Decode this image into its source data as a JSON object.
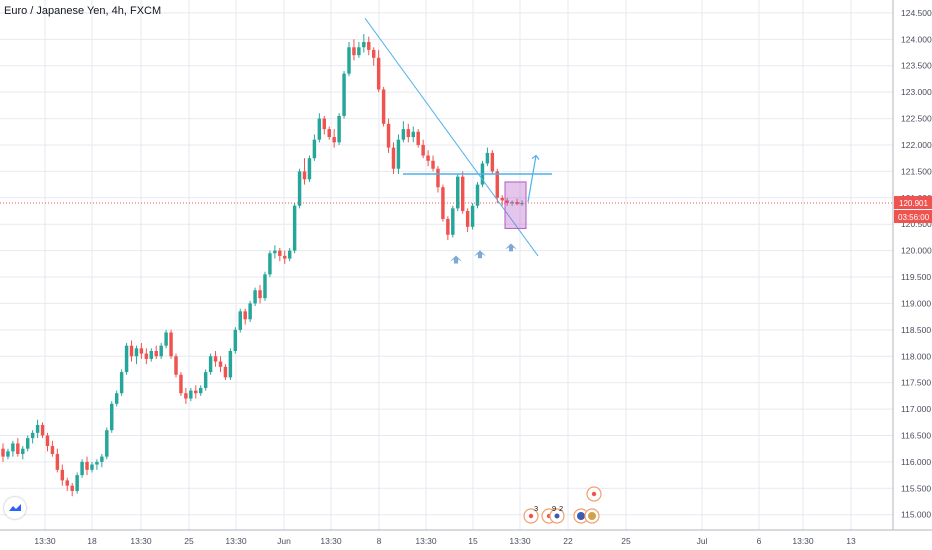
{
  "header": {
    "title": "Euro / Japanese Yen, 4h, FXCM"
  },
  "colors": {
    "up": "#26a69a",
    "down": "#ef5350",
    "grid": "#e6e9ef",
    "drawing": "#4fb0ea",
    "price_line": "#ef5350",
    "box": "#b25ac7",
    "event": "#f3a06d"
  },
  "price_badge": {
    "price": "120.901",
    "countdown": "03:56:00"
  },
  "events": {
    "numbers": [
      "3",
      "9",
      "2"
    ]
  },
  "chart_data": {
    "type": "candlestick",
    "title": "Euro / Japanese Yen, 4h, FXCM",
    "ylim": [
      114.9,
      124.65
    ],
    "y_ticks": [
      "124.500",
      "124.000",
      "123.500",
      "123.000",
      "122.500",
      "122.000",
      "121.500",
      "121.000",
      "120.500",
      "120.000",
      "119.500",
      "119.000",
      "118.500",
      "118.000",
      "117.500",
      "117.000",
      "116.500",
      "116.000",
      "115.500",
      "115.000"
    ],
    "x_ticks": [
      "13:30",
      "18",
      "13:30",
      "25",
      "13:30",
      "Jun",
      "13:30",
      "8",
      "13:30",
      "15",
      "13:30",
      "22",
      "25",
      "Jul",
      "6",
      "13:30",
      "13"
    ],
    "last_price": 120.901,
    "candles": [
      [
        116.25,
        116.35,
        116.0,
        116.1
      ],
      [
        116.1,
        116.25,
        116.05,
        116.2
      ],
      [
        116.2,
        116.4,
        116.1,
        116.35
      ],
      [
        116.35,
        116.45,
        116.1,
        116.15
      ],
      [
        116.15,
        116.3,
        116.05,
        116.25
      ],
      [
        116.25,
        116.5,
        116.2,
        116.45
      ],
      [
        116.45,
        116.6,
        116.35,
        116.55
      ],
      [
        116.55,
        116.8,
        116.45,
        116.7
      ],
      [
        116.7,
        116.75,
        116.45,
        116.5
      ],
      [
        116.5,
        116.55,
        116.2,
        116.3
      ],
      [
        116.3,
        116.4,
        116.1,
        116.15
      ],
      [
        116.15,
        116.25,
        115.8,
        115.85
      ],
      [
        115.85,
        115.95,
        115.55,
        115.65
      ],
      [
        115.65,
        115.7,
        115.45,
        115.55
      ],
      [
        115.55,
        115.6,
        115.35,
        115.45
      ],
      [
        115.45,
        115.8,
        115.4,
        115.75
      ],
      [
        115.75,
        116.05,
        115.7,
        116.0
      ],
      [
        116.0,
        116.1,
        115.75,
        115.85
      ],
      [
        115.85,
        116.0,
        115.8,
        115.95
      ],
      [
        115.95,
        116.05,
        115.85,
        116.0
      ],
      [
        116.0,
        116.15,
        115.9,
        116.1
      ],
      [
        116.1,
        116.65,
        116.05,
        116.6
      ],
      [
        116.6,
        117.15,
        116.55,
        117.1
      ],
      [
        117.1,
        117.35,
        117.05,
        117.3
      ],
      [
        117.3,
        117.75,
        117.25,
        117.7
      ],
      [
        117.7,
        118.25,
        117.65,
        118.2
      ],
      [
        118.2,
        118.3,
        117.9,
        118.0
      ],
      [
        118.0,
        118.2,
        117.85,
        118.15
      ],
      [
        118.15,
        118.25,
        117.95,
        118.05
      ],
      [
        118.05,
        118.15,
        117.85,
        117.95
      ],
      [
        117.95,
        118.15,
        117.9,
        118.1
      ],
      [
        118.1,
        118.2,
        117.95,
        118.0
      ],
      [
        118.0,
        118.25,
        117.95,
        118.2
      ],
      [
        118.2,
        118.5,
        118.15,
        118.45
      ],
      [
        118.45,
        118.5,
        117.95,
        118.0
      ],
      [
        118.0,
        118.05,
        117.6,
        117.65
      ],
      [
        117.65,
        117.7,
        117.25,
        117.3
      ],
      [
        117.3,
        117.4,
        117.1,
        117.2
      ],
      [
        117.2,
        117.4,
        117.15,
        117.35
      ],
      [
        117.35,
        117.45,
        117.2,
        117.3
      ],
      [
        117.3,
        117.45,
        117.25,
        117.4
      ],
      [
        117.4,
        117.75,
        117.35,
        117.7
      ],
      [
        117.7,
        118.05,
        117.65,
        118.0
      ],
      [
        118.0,
        118.1,
        117.8,
        117.9
      ],
      [
        117.9,
        118.0,
        117.7,
        117.8
      ],
      [
        117.8,
        117.85,
        117.55,
        117.6
      ],
      [
        117.6,
        118.15,
        117.55,
        118.1
      ],
      [
        118.1,
        118.55,
        118.05,
        118.5
      ],
      [
        118.5,
        118.9,
        118.45,
        118.85
      ],
      [
        118.85,
        118.9,
        118.6,
        118.7
      ],
      [
        118.7,
        119.05,
        118.65,
        119.0
      ],
      [
        119.0,
        119.3,
        118.95,
        119.25
      ],
      [
        119.25,
        119.35,
        119.0,
        119.1
      ],
      [
        119.1,
        119.6,
        119.05,
        119.55
      ],
      [
        119.55,
        120.0,
        119.5,
        119.95
      ],
      [
        119.95,
        120.1,
        119.85,
        120.0
      ],
      [
        120.0,
        120.05,
        119.8,
        119.9
      ],
      [
        119.9,
        120.0,
        119.75,
        119.85
      ],
      [
        119.85,
        120.05,
        119.8,
        120.0
      ],
      [
        120.0,
        120.9,
        119.95,
        120.85
      ],
      [
        120.85,
        121.55,
        120.8,
        121.5
      ],
      [
        121.5,
        121.75,
        121.25,
        121.35
      ],
      [
        121.35,
        121.8,
        121.3,
        121.75
      ],
      [
        121.75,
        122.2,
        121.7,
        122.1
      ],
      [
        122.1,
        122.6,
        122.05,
        122.5
      ],
      [
        122.5,
        122.55,
        122.2,
        122.3
      ],
      [
        122.3,
        122.35,
        122.1,
        122.15
      ],
      [
        122.15,
        122.3,
        121.95,
        122.05
      ],
      [
        122.05,
        122.6,
        122.0,
        122.55
      ],
      [
        122.55,
        123.4,
        122.5,
        123.35
      ],
      [
        123.35,
        123.95,
        123.3,
        123.85
      ],
      [
        123.85,
        124.0,
        123.6,
        123.7
      ],
      [
        123.7,
        123.95,
        123.65,
        123.85
      ],
      [
        123.85,
        124.1,
        123.75,
        123.95
      ],
      [
        123.95,
        124.05,
        123.7,
        123.8
      ],
      [
        123.8,
        123.85,
        123.5,
        123.65
      ],
      [
        123.65,
        123.8,
        123.0,
        123.05
      ],
      [
        123.05,
        123.1,
        122.35,
        122.4
      ],
      [
        122.4,
        122.5,
        121.85,
        121.95
      ],
      [
        121.95,
        122.05,
        121.45,
        121.55
      ],
      [
        121.55,
        122.2,
        121.45,
        122.1
      ],
      [
        122.1,
        122.45,
        122.05,
        122.3
      ],
      [
        122.3,
        122.4,
        122.05,
        122.15
      ],
      [
        122.15,
        122.35,
        122.05,
        122.25
      ],
      [
        122.25,
        122.3,
        121.95,
        122.0
      ],
      [
        122.0,
        122.1,
        121.75,
        121.8
      ],
      [
        121.8,
        121.9,
        121.6,
        121.7
      ],
      [
        121.7,
        121.8,
        121.5,
        121.55
      ],
      [
        121.55,
        121.6,
        121.1,
        121.2
      ],
      [
        121.2,
        121.25,
        120.55,
        120.6
      ],
      [
        120.6,
        120.65,
        120.2,
        120.3
      ],
      [
        120.3,
        120.85,
        120.25,
        120.8
      ],
      [
        120.8,
        121.45,
        120.75,
        121.4
      ],
      [
        121.4,
        121.5,
        120.7,
        120.75
      ],
      [
        120.75,
        120.8,
        120.35,
        120.45
      ],
      [
        120.45,
        120.9,
        120.4,
        120.85
      ],
      [
        120.85,
        121.3,
        120.8,
        121.25
      ],
      [
        121.25,
        121.7,
        121.2,
        121.65
      ],
      [
        121.65,
        121.95,
        121.6,
        121.85
      ],
      [
        121.85,
        121.9,
        121.45,
        121.5
      ],
      [
        121.5,
        121.55,
        120.9,
        121.0
      ],
      [
        121.0,
        121.05,
        120.85,
        120.95
      ],
      [
        120.95,
        121.0,
        120.85,
        120.9
      ],
      [
        120.9,
        120.95,
        120.85,
        120.92
      ],
      [
        120.92,
        120.98,
        120.86,
        120.88
      ],
      [
        120.88,
        120.95,
        120.85,
        120.901
      ]
    ]
  }
}
